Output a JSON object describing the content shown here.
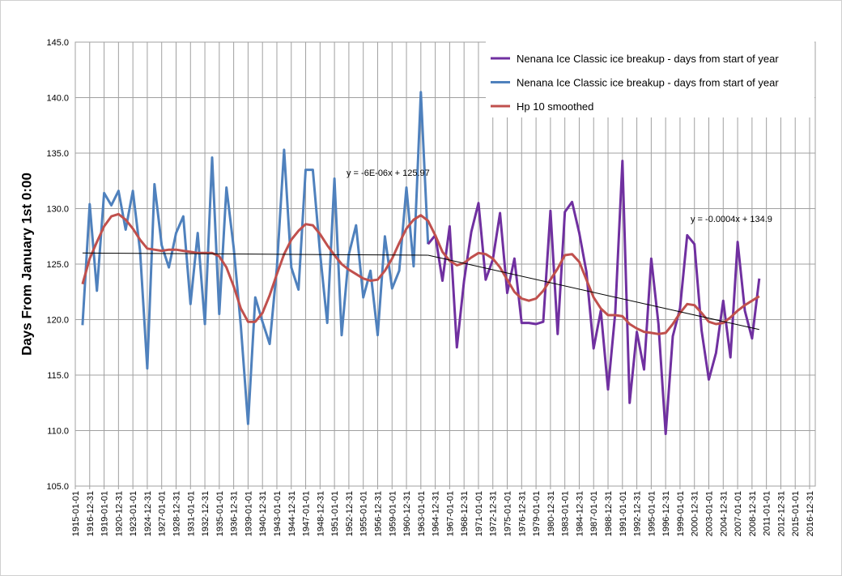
{
  "chart_data": {
    "type": "line",
    "y_label": "Days From January 1st 0:00",
    "ylim": [
      105,
      145
    ],
    "yticks": [
      {
        "value": 105,
        "label": "105.0"
      },
      {
        "value": 110,
        "label": "110.0"
      },
      {
        "value": 115,
        "label": "115.0"
      },
      {
        "value": 120,
        "label": "120.0"
      },
      {
        "value": 125,
        "label": "125.0"
      },
      {
        "value": 130,
        "label": "130.0"
      },
      {
        "value": 135,
        "label": "135.0"
      },
      {
        "value": 140,
        "label": "140.0"
      },
      {
        "value": 145,
        "label": "145.0"
      }
    ],
    "xlim": [
      1915,
      2017
    ],
    "xticks": [
      {
        "value": 1915,
        "label": "1915-01-01"
      },
      {
        "value": 1917,
        "label": "1916-12-31"
      },
      {
        "value": 1919,
        "label": "1919-01-01"
      },
      {
        "value": 1921,
        "label": "1920-12-31"
      },
      {
        "value": 1923,
        "label": "1923-01-01"
      },
      {
        "value": 1925,
        "label": "1924-12-31"
      },
      {
        "value": 1927,
        "label": "1927-01-01"
      },
      {
        "value": 1929,
        "label": "1928-12-31"
      },
      {
        "value": 1931,
        "label": "1931-01-01"
      },
      {
        "value": 1933,
        "label": "1932-12-31"
      },
      {
        "value": 1935,
        "label": "1935-01-01"
      },
      {
        "value": 1937,
        "label": "1936-12-31"
      },
      {
        "value": 1939,
        "label": "1939-01-01"
      },
      {
        "value": 1941,
        "label": "1940-12-31"
      },
      {
        "value": 1943,
        "label": "1943-01-01"
      },
      {
        "value": 1945,
        "label": "1944-12-31"
      },
      {
        "value": 1947,
        "label": "1947-01-01"
      },
      {
        "value": 1949,
        "label": "1948-12-31"
      },
      {
        "value": 1951,
        "label": "1951-01-01"
      },
      {
        "value": 1953,
        "label": "1952-12-31"
      },
      {
        "value": 1955,
        "label": "1955-01-01"
      },
      {
        "value": 1957,
        "label": "1956-12-31"
      },
      {
        "value": 1959,
        "label": "1959-01-01"
      },
      {
        "value": 1961,
        "label": "1960-12-31"
      },
      {
        "value": 1963,
        "label": "1963-01-01"
      },
      {
        "value": 1965,
        "label": "1964-12-31"
      },
      {
        "value": 1967,
        "label": "1967-01-01"
      },
      {
        "value": 1969,
        "label": "1968-12-31"
      },
      {
        "value": 1971,
        "label": "1971-01-01"
      },
      {
        "value": 1973,
        "label": "1972-12-31"
      },
      {
        "value": 1975,
        "label": "1975-01-01"
      },
      {
        "value": 1977,
        "label": "1976-12-31"
      },
      {
        "value": 1979,
        "label": "1979-01-01"
      },
      {
        "value": 1981,
        "label": "1980-12-31"
      },
      {
        "value": 1983,
        "label": "1983-01-01"
      },
      {
        "value": 1985,
        "label": "1984-12-31"
      },
      {
        "value": 1987,
        "label": "1987-01-01"
      },
      {
        "value": 1989,
        "label": "1988-12-31"
      },
      {
        "value": 1991,
        "label": "1991-01-01"
      },
      {
        "value": 1993,
        "label": "1992-12-31"
      },
      {
        "value": 1995,
        "label": "1995-01-01"
      },
      {
        "value": 1997,
        "label": "1996-12-31"
      },
      {
        "value": 1999,
        "label": "1999-01-01"
      },
      {
        "value": 2001,
        "label": "2000-12-31"
      },
      {
        "value": 2003,
        "label": "2003-01-01"
      },
      {
        "value": 2005,
        "label": "2004-12-31"
      },
      {
        "value": 2007,
        "label": "2007-01-01"
      },
      {
        "value": 2009,
        "label": "2008-12-31"
      },
      {
        "value": 2011,
        "label": "2011-01-01"
      },
      {
        "value": 2013,
        "label": "2012-12-31"
      },
      {
        "value": 2015,
        "label": "2015-01-01"
      },
      {
        "value": 2017,
        "label": "2016-12-31"
      }
    ],
    "grid": true,
    "legend": "top-right",
    "series": [
      {
        "name": "Nenana Ice Classic ice breakup - days from start of year",
        "color": "#7030a0",
        "x": [
          1964,
          1965,
          1966,
          1967,
          1968,
          1969,
          1970,
          1971,
          1972,
          1973,
          1974,
          1975,
          1976,
          1977,
          1978,
          1979,
          1980,
          1981,
          1982,
          1983,
          1984,
          1985,
          1986,
          1987,
          1988,
          1989,
          1990,
          1991,
          1992,
          1993,
          1994,
          1995,
          1996,
          1997,
          1998,
          1999,
          2000,
          2001,
          2002,
          2003,
          2004,
          2005,
          2006,
          2007,
          2008,
          2009,
          2010
        ],
        "values": [
          126.8,
          127.6,
          123.5,
          128.4,
          117.5,
          123.5,
          127.9,
          130.5,
          123.6,
          125.4,
          129.6,
          122.4,
          125.5,
          119.7,
          119.7,
          119.6,
          119.8,
          129.8,
          118.7,
          129.7,
          130.6,
          127.8,
          124.3,
          117.4,
          120.8,
          113.7,
          120.6,
          134.3,
          112.5,
          118.9,
          115.5,
          125.5,
          119.6,
          109.7,
          118.5,
          121.0,
          127.6,
          126.8,
          119.0,
          114.6,
          117.0,
          121.7,
          116.6,
          127.0,
          120.8,
          118.3,
          123.7
        ]
      },
      {
        "name": "Nenana Ice Classic ice breakup - days from start of year",
        "color": "#4f81bd",
        "x": [
          1916,
          1917,
          1918,
          1919,
          1920,
          1921,
          1922,
          1923,
          1924,
          1925,
          1926,
          1927,
          1928,
          1929,
          1930,
          1931,
          1932,
          1933,
          1934,
          1935,
          1936,
          1937,
          1938,
          1939,
          1940,
          1941,
          1942,
          1943,
          1944,
          1945,
          1946,
          1947,
          1948,
          1949,
          1950,
          1951,
          1952,
          1953,
          1954,
          1955,
          1956,
          1957,
          1958,
          1959,
          1960,
          1961,
          1962,
          1963,
          1964
        ],
        "values": [
          119.5,
          130.4,
          122.6,
          131.4,
          130.3,
          131.6,
          128.1,
          131.6,
          126.2,
          115.6,
          132.2,
          126.7,
          124.7,
          127.8,
          129.3,
          121.4,
          127.8,
          119.6,
          134.6,
          120.5,
          131.9,
          126.5,
          119.4,
          110.6,
          122.0,
          119.8,
          117.8,
          124.7,
          135.3,
          124.7,
          122.7,
          133.5,
          133.5,
          126.0,
          119.7,
          132.7,
          118.6,
          125.9,
          128.5,
          122.0,
          124.4,
          118.6,
          127.5,
          122.8,
          124.4,
          131.9,
          124.8,
          140.5,
          126.8
        ]
      },
      {
        "name": "Hp 10 smoothed",
        "color": "#c0504d",
        "x": [
          1916,
          1917,
          1918,
          1919,
          1920,
          1921,
          1922,
          1923,
          1924,
          1925,
          1926,
          1927,
          1928,
          1929,
          1930,
          1931,
          1932,
          1933,
          1934,
          1935,
          1936,
          1937,
          1938,
          1939,
          1940,
          1941,
          1942,
          1943,
          1944,
          1945,
          1946,
          1947,
          1948,
          1949,
          1950,
          1951,
          1952,
          1953,
          1954,
          1955,
          1956,
          1957,
          1958,
          1959,
          1960,
          1961,
          1962,
          1963,
          1964,
          1965,
          1966,
          1967,
          1968,
          1969,
          1970,
          1971,
          1972,
          1973,
          1974,
          1975,
          1976,
          1977,
          1978,
          1979,
          1980,
          1981,
          1982,
          1983,
          1984,
          1985,
          1986,
          1987,
          1988,
          1989,
          1990,
          1991,
          1992,
          1993,
          1994,
          1995,
          1996,
          1997,
          1998,
          1999,
          2000,
          2001,
          2002,
          2003,
          2004,
          2005,
          2006,
          2007,
          2008,
          2009,
          2010
        ],
        "values": [
          123.2,
          125.5,
          127.0,
          128.4,
          129.3,
          129.5,
          129.0,
          128.2,
          127.2,
          126.4,
          126.3,
          126.2,
          126.3,
          126.3,
          126.2,
          126.1,
          126.0,
          126.0,
          126.0,
          125.7,
          124.7,
          123.0,
          121.0,
          119.8,
          119.8,
          120.6,
          122.2,
          124.1,
          125.9,
          127.2,
          128.0,
          128.6,
          128.5,
          127.7,
          126.7,
          125.8,
          125.0,
          124.5,
          124.1,
          123.7,
          123.5,
          123.6,
          124.4,
          125.5,
          126.9,
          128.2,
          129.0,
          129.4,
          128.9,
          127.6,
          126.1,
          125.3,
          124.9,
          125.1,
          125.6,
          126.0,
          125.9,
          125.5,
          124.7,
          123.6,
          122.5,
          121.9,
          121.7,
          121.9,
          122.6,
          123.6,
          124.6,
          125.8,
          125.9,
          125.2,
          123.6,
          122.0,
          121.0,
          120.4,
          120.4,
          120.3,
          119.6,
          119.2,
          118.9,
          118.8,
          118.7,
          118.8,
          119.6,
          120.6,
          121.4,
          121.3,
          120.6,
          119.8,
          119.6,
          119.7,
          120.2,
          120.8,
          121.3,
          121.7,
          122.1
        ]
      }
    ],
    "trendlines": [
      {
        "label": "y = -6E-06x + 125.97",
        "x": [
          1916,
          1964
        ],
        "values": [
          126.0,
          125.8
        ]
      },
      {
        "label": "y = -0.0004x + 134.9",
        "x": [
          1964,
          2010
        ],
        "values": [
          125.8,
          119.1
        ]
      }
    ]
  }
}
